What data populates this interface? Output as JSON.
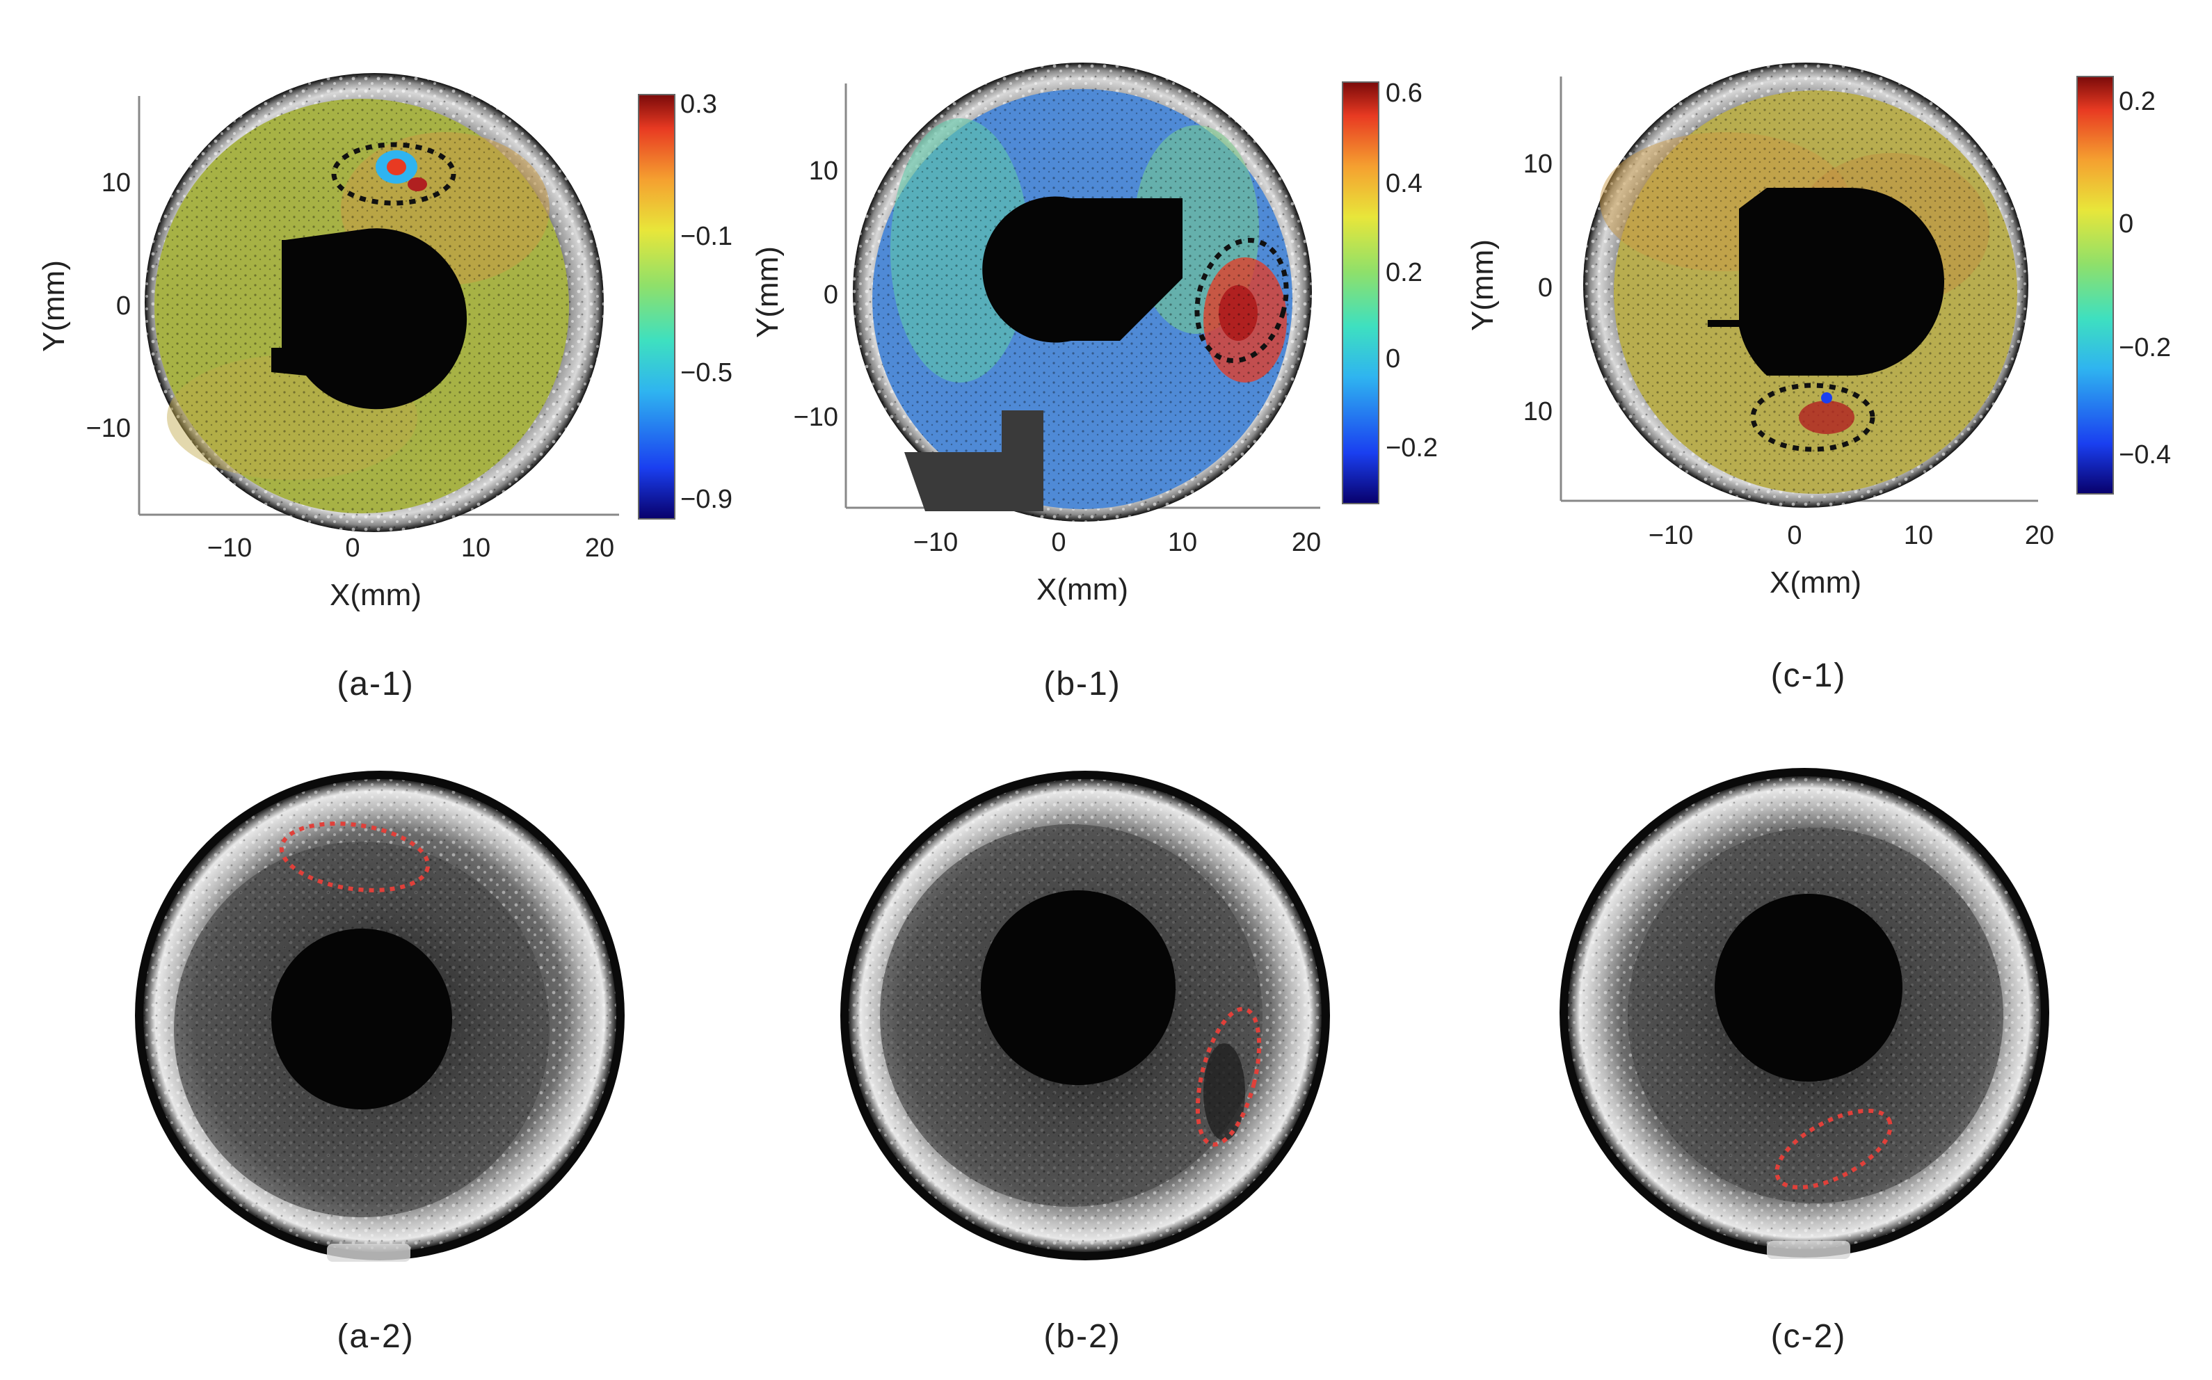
{
  "panels_top": [
    {
      "id": "a-1",
      "caption": "(a-1)",
      "xlabel": "X(mm)",
      "ylabel": "Y(mm)",
      "xticks": [
        "−10",
        "0",
        "10",
        "20"
      ],
      "yticks": [
        "10",
        "0",
        "−10"
      ],
      "colorbar_ticks": [
        "0.3",
        "−0.1",
        "−0.5",
        "−0.9"
      ],
      "colorbar_range": [
        -1.0,
        0.35
      ],
      "field_color": "#a7b245",
      "marked_region": "top"
    },
    {
      "id": "b-1",
      "caption": "(b-1)",
      "xlabel": "X(mm)",
      "ylabel": "Y(mm)",
      "xticks": [
        "−10",
        "0",
        "10",
        "20"
      ],
      "yticks": [
        "10",
        "0",
        "−10"
      ],
      "colorbar_ticks": [
        "0.6",
        "0.4",
        "0.2",
        "0",
        "−0.2"
      ],
      "colorbar_range": [
        -0.3,
        0.65
      ],
      "field_color": "#4f8ad6",
      "marked_region": "right"
    },
    {
      "id": "c-1",
      "caption": "(c-1)",
      "xlabel": "X(mm)",
      "ylabel": "Y(mm)",
      "xticks": [
        "−10",
        "0",
        "10",
        "20"
      ],
      "yticks": [
        "10",
        "0",
        "10"
      ],
      "colorbar_ticks": [
        "0.2",
        "0",
        "−0.2",
        "−0.4"
      ],
      "colorbar_range": [
        -0.5,
        0.25
      ],
      "field_color": "#b8ad4f",
      "marked_region": "bottom"
    }
  ],
  "panels_bottom": [
    {
      "id": "a-2",
      "caption": "(a-2)",
      "marked_region": "top"
    },
    {
      "id": "b-2",
      "caption": "(b-2)",
      "marked_region": "right"
    },
    {
      "id": "c-2",
      "caption": "(c-2)",
      "marked_region": "bottom"
    }
  ],
  "colors": {
    "black_marker": "#111111",
    "red_marker": "#e0403a",
    "colormap": [
      "#08006b",
      "#1a3ff0",
      "#2fb4f0",
      "#3ee0c0",
      "#8fe06a",
      "#e8e63a",
      "#f5a030",
      "#e83a22",
      "#7a0a0a"
    ]
  }
}
